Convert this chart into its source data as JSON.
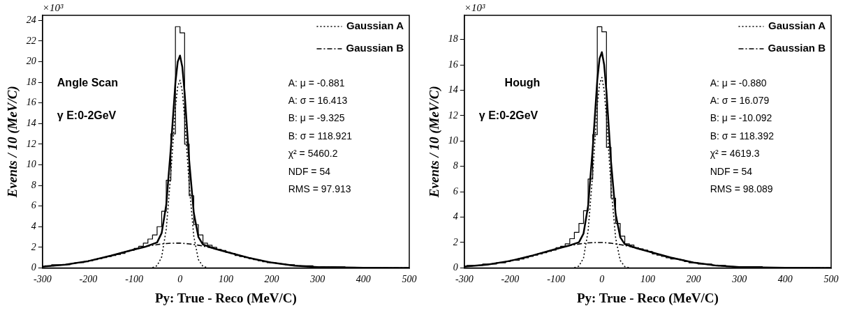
{
  "chart_data": [
    {
      "type": "step",
      "xlabel": "Py: True - Reco (MeV/C)",
      "ylabel": "Events / 10 (MeV/C)",
      "annotations": [
        "×10³",
        "Angle Scan",
        "γ E:0-2GeV",
        "A: μ = -0.881",
        "A: σ = 16.413",
        "B: μ = -9.325",
        "B: σ = 118.921",
        "χ² = 5460.2",
        "NDF = 54",
        "RMS = 97.913"
      ],
      "xlim": [
        -300,
        500
      ],
      "xticks": [
        -300,
        -200,
        -100,
        0,
        100,
        200,
        300,
        400,
        500
      ],
      "ylim": [
        0,
        24.5
      ],
      "yticks": [
        0,
        2,
        4,
        6,
        8,
        10,
        12,
        14,
        16,
        18,
        20,
        22,
        24
      ],
      "grid": false,
      "legend": "top right",
      "marker": "none",
      "series": [
        {
          "color": "#000000",
          "line_style": "solid",
          "x": [
            -295,
            -285,
            -275,
            -265,
            -255,
            -245,
            -235,
            -225,
            -215,
            -205,
            -195,
            -185,
            -175,
            -165,
            -155,
            -145,
            -135,
            -125,
            -115,
            -105,
            -95,
            -85,
            -75,
            -65,
            -55,
            -45,
            -35,
            -25,
            -15,
            -5,
            5,
            15,
            25,
            35,
            45,
            55,
            65,
            75,
            85,
            95,
            105,
            115,
            125,
            135,
            145,
            155,
            165,
            175,
            185,
            195,
            205,
            215,
            225,
            235,
            245,
            255,
            265,
            275,
            285,
            295,
            305,
            315,
            325,
            335,
            345,
            355,
            365,
            375,
            385,
            395,
            405,
            415,
            425,
            435,
            445,
            455,
            465,
            475,
            485,
            495
          ],
          "values": [
            0.2,
            0.2,
            0.3,
            0.3,
            0.3,
            0.3,
            0.4,
            0.5,
            0.5,
            0.6,
            0.7,
            0.8,
            0.9,
            1.0,
            1.1,
            1.2,
            1.3,
            1.4,
            1.6,
            1.7,
            1.9,
            2.1,
            2.4,
            2.8,
            3.2,
            4.0,
            5.5,
            8.5,
            13.0,
            23.4,
            22.8,
            12.0,
            7.0,
            4.2,
            3.2,
            2.4,
            2.2,
            2.0,
            1.8,
            1.7,
            1.5,
            1.4,
            1.2,
            1.1,
            1.0,
            0.9,
            0.8,
            0.7,
            0.6,
            0.5,
            0.5,
            0.4,
            0.4,
            0.3,
            0.3,
            0.2,
            0.2,
            0.2,
            0.2,
            0.1,
            0.1,
            0.1,
            0.1,
            0.1,
            0.1,
            0.1,
            0,
            0,
            0,
            0,
            0,
            0,
            0,
            0,
            0,
            0,
            0,
            0,
            0,
            0
          ]
        },
        {
          "type": "line",
          "color": "#000000",
          "line_style": "solid",
          "x": [
            -300,
            -250,
            -200,
            -150,
            -100,
            -75,
            -50,
            -40,
            -30,
            -20,
            -10,
            -5,
            0,
            5,
            10,
            20,
            30,
            40,
            50,
            75,
            100,
            150,
            200,
            250,
            300,
            400,
            500
          ],
          "values": [
            0.12,
            0.31,
            0.66,
            1.19,
            1.79,
            2.06,
            2.47,
            3.38,
            6.13,
            11.63,
            18.0,
            20.0,
            20.6,
            19.5,
            17.0,
            10.4,
            5.35,
            3.01,
            2.27,
            1.87,
            1.57,
            0.98,
            0.51,
            0.22,
            0.08,
            0.01,
            0
          ]
        },
        {
          "type": "line",
          "name": "Gaussian A",
          "color": "#000000",
          "line_style": "dotted",
          "x": [
            -60,
            -50,
            -40,
            -30,
            -20,
            -10,
            -5,
            0,
            5,
            10,
            20,
            30,
            40,
            50,
            60
          ],
          "values": [
            0.03,
            0.21,
            1.06,
            3.77,
            9.24,
            15.6,
            17.6,
            18.2,
            17.1,
            14.6,
            8.08,
            3.08,
            0.81,
            0.15,
            0.01
          ]
        },
        {
          "type": "line",
          "name": "Gaussian B",
          "color": "#000000",
          "line_style": "dashed",
          "x": [
            -300,
            -250,
            -200,
            -150,
            -100,
            -75,
            -50,
            -40,
            -30,
            -20,
            -10,
            0,
            10,
            20,
            30,
            40,
            50,
            75,
            100,
            150,
            200,
            250,
            300,
            400,
            500
          ],
          "values": [
            0.12,
            0.31,
            0.66,
            1.19,
            1.79,
            2.06,
            2.26,
            2.32,
            2.36,
            2.39,
            2.4,
            2.4,
            2.37,
            2.33,
            2.27,
            2.2,
            2.12,
            1.87,
            1.57,
            0.98,
            0.51,
            0.22,
            0.08,
            0.01,
            0
          ]
        }
      ]
    },
    {
      "type": "step",
      "xlabel": "Py: True - Reco (MeV/C)",
      "ylabel": "Events / 10 (MeV/C)",
      "annotations": [
        "×10³",
        "Hough",
        "γ E:0-2GeV",
        "A: μ = -0.880",
        "A: σ = 16.079",
        "B: μ = -10.092",
        "B: σ = 118.392",
        "χ² = 4619.3",
        "NDF = 54",
        "RMS = 98.089"
      ],
      "xlim": [
        -300,
        500
      ],
      "xticks": [
        -300,
        -200,
        -100,
        0,
        100,
        200,
        300,
        400,
        500
      ],
      "ylim": [
        0,
        19.9
      ],
      "yticks": [
        0,
        2,
        4,
        6,
        8,
        10,
        12,
        14,
        16,
        18
      ],
      "grid": false,
      "legend": "top right",
      "marker": "none",
      "series": [
        {
          "color": "#000000",
          "line_style": "solid",
          "x": [
            -295,
            -285,
            -275,
            -265,
            -255,
            -245,
            -235,
            -225,
            -215,
            -205,
            -195,
            -185,
            -175,
            -165,
            -155,
            -145,
            -135,
            -125,
            -115,
            -105,
            -95,
            -85,
            -75,
            -65,
            -55,
            -45,
            -35,
            -25,
            -15,
            -5,
            5,
            15,
            25,
            35,
            45,
            55,
            65,
            75,
            85,
            95,
            105,
            115,
            125,
            135,
            145,
            155,
            165,
            175,
            185,
            195,
            205,
            215,
            225,
            235,
            245,
            255,
            265,
            275,
            285,
            295,
            305,
            315,
            325,
            335,
            345,
            355,
            365,
            375,
            385,
            395,
            405,
            415,
            425,
            435,
            445,
            455,
            465,
            475,
            485,
            495
          ],
          "values": [
            0.2,
            0.2,
            0.2,
            0.2,
            0.3,
            0.3,
            0.3,
            0.4,
            0.4,
            0.5,
            0.6,
            0.6,
            0.7,
            0.8,
            0.9,
            1.0,
            1.1,
            1.2,
            1.3,
            1.4,
            1.6,
            1.7,
            1.9,
            2.3,
            2.8,
            3.5,
            4.5,
            7.0,
            10.5,
            19.0,
            18.6,
            9.5,
            5.5,
            3.5,
            2.5,
            1.9,
            1.8,
            1.6,
            1.5,
            1.4,
            1.3,
            1.1,
            1.0,
            0.9,
            0.8,
            0.7,
            0.7,
            0.6,
            0.5,
            0.4,
            0.4,
            0.3,
            0.3,
            0.3,
            0.2,
            0.2,
            0.2,
            0.1,
            0.1,
            0.1,
            0.1,
            0.1,
            0.1,
            0.1,
            0.1,
            0,
            0,
            0,
            0,
            0,
            0,
            0,
            0,
            0,
            0,
            0,
            0,
            0,
            0,
            0
          ]
        },
        {
          "type": "line",
          "color": "#000000",
          "line_style": "solid",
          "x": [
            -300,
            -250,
            -200,
            -150,
            -100,
            -75,
            -50,
            -40,
            -30,
            -20,
            -10,
            -5,
            0,
            5,
            10,
            20,
            30,
            40,
            50,
            75,
            100,
            150,
            200,
            250,
            300,
            400,
            500
          ],
          "values": [
            0.1,
            0.26,
            0.55,
            0.99,
            1.49,
            1.72,
            2.02,
            2.71,
            4.88,
            9.39,
            14.8,
            16.5,
            17.0,
            16.0,
            13.9,
            8.34,
            4.25,
            2.42,
            1.87,
            1.56,
            1.31,
            0.82,
            0.42,
            0.18,
            0.07,
            0.01,
            0
          ]
        },
        {
          "type": "line",
          "name": "Gaussian A",
          "color": "#000000",
          "line_style": "dotted",
          "x": [
            -60,
            -50,
            -40,
            -30,
            -20,
            -10,
            -5,
            0,
            5,
            10,
            20,
            30,
            40,
            50,
            60
          ],
          "values": [
            0.02,
            0.14,
            0.78,
            2.91,
            7.4,
            12.8,
            14.5,
            15.0,
            14.0,
            11.9,
            6.4,
            2.36,
            0.59,
            0.1,
            0.01
          ]
        },
        {
          "type": "line",
          "name": "Gaussian B",
          "color": "#000000",
          "line_style": "dashed",
          "x": [
            -300,
            -250,
            -200,
            -150,
            -100,
            -75,
            -50,
            -40,
            -30,
            -20,
            -10,
            0,
            10,
            20,
            30,
            40,
            50,
            75,
            100,
            150,
            200,
            250,
            300,
            400,
            500
          ],
          "values": [
            0.1,
            0.26,
            0.55,
            0.99,
            1.49,
            1.72,
            1.88,
            1.93,
            1.97,
            1.99,
            2.0,
            2.0,
            1.98,
            1.94,
            1.89,
            1.83,
            1.77,
            1.56,
            1.31,
            0.82,
            0.42,
            0.18,
            0.07,
            0.01,
            0
          ]
        }
      ]
    }
  ]
}
